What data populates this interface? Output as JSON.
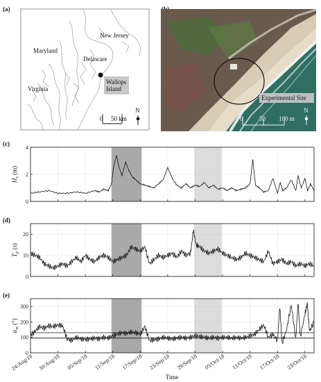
{
  "panels": {
    "a": {
      "label": "(a)",
      "places": [
        "New Jersey",
        "Maryland",
        "Delaware",
        "Virginia"
      ],
      "site_label": "Wallops\nIsland",
      "scale_ticks": [
        "0",
        "50 km"
      ],
      "north": "N"
    },
    "b": {
      "label": "(b)",
      "site_label": "Experimental Site",
      "scale_ticks": [
        "0",
        "50",
        "100 m"
      ],
      "north": "N"
    }
  },
  "colors": {
    "storm1": "#a9a9a9",
    "storm2": "#dcdcdc",
    "line": "#111111",
    "ocean": "#2f6f62",
    "sand": "#d8ccb4",
    "marsh": "#6a5a4e"
  },
  "time_axis": {
    "label": "Time",
    "ticks": [
      "24/Aug/18",
      "30/Aug/18",
      "05/Sep/18",
      "11/Sep/18",
      "17/Sep/18",
      "23/Sep/18",
      "29/Sep/18",
      "05/Oct/18",
      "11/Oct/18",
      "17/Oct/18",
      "23/Oct/18"
    ],
    "tick_days": [
      0,
      6,
      12,
      18,
      24,
      30,
      36,
      42,
      48,
      54,
      60
    ],
    "range_days": [
      0,
      62
    ],
    "grid": true
  },
  "chart_data": [
    {
      "type": "line",
      "panel": "(c)",
      "ylabel_base": "H",
      "ylabel_sub": "s",
      "ylabel_unit": " (m)",
      "ylim": [
        0,
        4
      ],
      "yticks": [
        0,
        2,
        4
      ],
      "shaded_periods": [
        [
          17.7,
          24.3
        ],
        [
          35.8,
          41.8
        ]
      ],
      "series": [
        {
          "x": [
            0,
            2,
            4,
            6,
            8,
            10,
            12,
            14,
            15,
            16,
            17,
            17.7,
            18.2,
            18.8,
            19.3,
            20,
            20.8,
            21.5,
            22.3,
            23,
            24,
            25,
            26,
            27,
            28,
            29,
            30,
            31,
            32,
            33,
            34,
            35,
            36,
            37,
            38,
            39,
            40,
            41,
            42,
            43,
            44,
            45,
            46,
            47,
            48,
            48.6,
            49.2,
            50,
            51,
            52,
            53,
            54,
            54.6,
            55.2,
            56,
            57,
            58,
            58.5,
            59.2,
            60,
            60.6,
            61.2,
            62
          ],
          "values": [
            0.6,
            0.7,
            0.8,
            0.6,
            0.6,
            0.7,
            0.6,
            0.8,
            0.7,
            0.9,
            0.8,
            1.3,
            2.6,
            3.4,
            2.6,
            1.9,
            2.9,
            2.3,
            1.8,
            1.6,
            1.3,
            1.2,
            1.1,
            1.0,
            1.3,
            1.6,
            2.5,
            1.7,
            1.2,
            1.0,
            1.3,
            1.0,
            1.2,
            1.1,
            1.4,
            1.0,
            1.2,
            0.9,
            1.0,
            0.8,
            1.0,
            0.8,
            0.9,
            1.0,
            1.3,
            3.1,
            1.2,
            1.0,
            0.7,
            0.8,
            1.7,
            0.6,
            1.4,
            0.8,
            1.0,
            1.6,
            0.8,
            1.9,
            1.0,
            1.7,
            0.8,
            1.3,
            0.8
          ]
        }
      ]
    },
    {
      "type": "line",
      "panel": "(d)",
      "ylabel_base": "T",
      "ylabel_sub": "p",
      "ylabel_unit": " (s)",
      "ylim": [
        0,
        25
      ],
      "yticks": [
        0,
        10,
        20
      ],
      "shaded_periods": [
        [
          17.7,
          24.3
        ],
        [
          35.8,
          41.8
        ]
      ],
      "series": [
        {
          "x": [
            0,
            1,
            2,
            3,
            4,
            5,
            6,
            7,
            8,
            9,
            10,
            11,
            12,
            13,
            14,
            15,
            16,
            17,
            18,
            19,
            20,
            21,
            22,
            23,
            24,
            25,
            26,
            27,
            28,
            29,
            30,
            31,
            32,
            33,
            34,
            35,
            35.6,
            36.2,
            37,
            38,
            39,
            40,
            41,
            42,
            43,
            44,
            45,
            46,
            47,
            48,
            49,
            50,
            51,
            52,
            53,
            54,
            55,
            56,
            57,
            58,
            59,
            60,
            61,
            62
          ],
          "values": [
            11,
            10,
            9,
            6,
            5,
            4,
            5,
            6,
            5,
            7,
            9,
            7,
            10,
            8,
            7,
            9,
            10,
            9,
            7,
            8,
            9,
            10,
            14,
            13,
            12,
            14,
            6,
            8,
            10,
            9,
            10,
            11,
            9,
            12,
            10,
            11,
            22,
            15,
            14,
            12,
            11,
            12,
            13,
            11,
            10,
            9,
            8,
            9,
            11,
            10,
            9,
            8,
            7,
            12,
            6,
            7,
            8,
            6,
            7,
            5,
            6,
            5,
            6,
            5
          ]
        }
      ]
    },
    {
      "type": "line",
      "panel": "(e)",
      "ylabel_base": "α",
      "ylabel_sub": "m",
      "ylabel_unit": " (°)",
      "ylim": [
        0,
        350
      ],
      "yticks": [
        0,
        100,
        200,
        300
      ],
      "hlines": [
        95,
        130
      ],
      "shaded_periods": [
        [
          17.7,
          24.3
        ],
        [
          35.8,
          41.8
        ]
      ],
      "series": [
        {
          "x": [
            0,
            1,
            2,
            3,
            4,
            5,
            6,
            7,
            8,
            9,
            10,
            11,
            12,
            13,
            14,
            15,
            16,
            17,
            18,
            19,
            20,
            21,
            22,
            23,
            24,
            25,
            26,
            27,
            28,
            29,
            30,
            31,
            32,
            33,
            34,
            35,
            36,
            37,
            38,
            39,
            40,
            41,
            42,
            43,
            44,
            45,
            46,
            47,
            48,
            49,
            50,
            51,
            52,
            53,
            54,
            54.5,
            55,
            56,
            57,
            58,
            58.5,
            59,
            60,
            60.5,
            61,
            62
          ],
          "values": [
            110,
            140,
            170,
            160,
            175,
            170,
            180,
            175,
            90,
            80,
            100,
            90,
            85,
            90,
            95,
            90,
            100,
            95,
            110,
            120,
            130,
            125,
            135,
            130,
            120,
            170,
            80,
            85,
            90,
            100,
            95,
            90,
            95,
            100,
            95,
            100,
            110,
            105,
            100,
            95,
            100,
            95,
            100,
            100,
            95,
            100,
            95,
            100,
            110,
            120,
            150,
            180,
            100,
            120,
            80,
            300,
            60,
            150,
            310,
            90,
            330,
            100,
            250,
            320,
            140,
            200
          ]
        }
      ]
    }
  ]
}
